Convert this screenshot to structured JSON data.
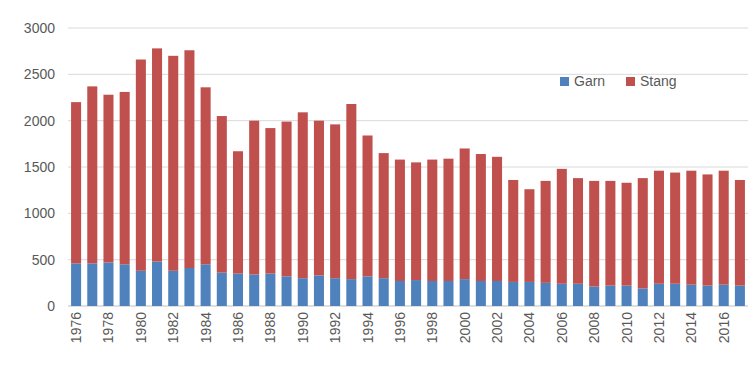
{
  "chart_data": {
    "type": "bar",
    "stacked": true,
    "grid": true,
    "legend": "upper right",
    "categories": [
      "1976",
      null,
      "1978",
      null,
      "1980",
      null,
      "1982",
      null,
      "1984",
      null,
      "1986",
      null,
      "1988",
      null,
      "1990",
      null,
      "1992",
      null,
      "1994",
      null,
      "1996",
      null,
      "1998",
      null,
      "2000",
      null,
      "2002",
      null,
      "2004",
      null,
      "2006",
      null,
      "2008",
      null,
      "2010",
      null,
      "2012",
      null,
      "2014",
      null,
      "2016",
      null
    ],
    "series": [
      {
        "name": "Garn",
        "color": "#4f81bd",
        "values": [
          460,
          460,
          470,
          450,
          380,
          480,
          380,
          410,
          450,
          360,
          350,
          340,
          350,
          320,
          300,
          330,
          300,
          290,
          320,
          300,
          270,
          280,
          270,
          270,
          290,
          270,
          270,
          260,
          260,
          250,
          240,
          240,
          210,
          220,
          220,
          190,
          240,
          240,
          230,
          220,
          230,
          220
        ]
      },
      {
        "name": "Stang",
        "color": "#c0504d",
        "values": [
          1740,
          1910,
          1810,
          1860,
          2280,
          2300,
          2320,
          2350,
          1910,
          1690,
          1320,
          1660,
          1570,
          1670,
          1790,
          1670,
          1660,
          1890,
          1520,
          1350,
          1310,
          1270,
          1310,
          1320,
          1410,
          1370,
          1340,
          1100,
          1000,
          1100,
          1240,
          1140,
          1140,
          1130,
          1110,
          1190,
          1220,
          1200,
          1230,
          1200,
          1230,
          1140
        ]
      }
    ],
    "ylim": [
      0,
      3000
    ],
    "yticks": [
      0,
      500,
      1000,
      1500,
      2000,
      2500,
      3000
    ]
  }
}
